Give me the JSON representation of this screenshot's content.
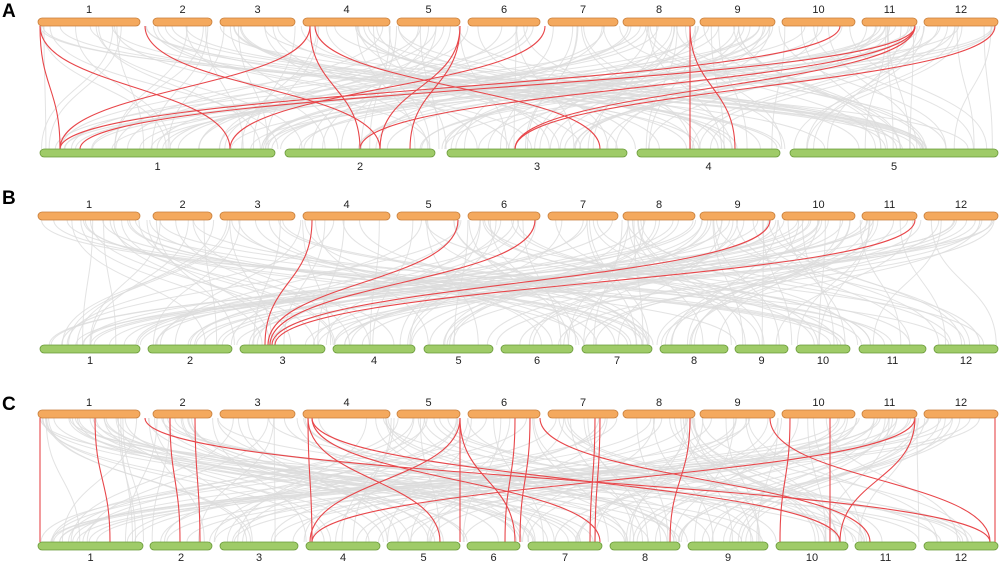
{
  "panels": [
    {
      "label": "A",
      "top": [
        "1",
        "2",
        "3",
        "4",
        "5",
        "6",
        "7",
        "8",
        "9",
        "10",
        "11",
        "12"
      ],
      "bottom": [
        "1",
        "2",
        "3",
        "4",
        "5"
      ]
    },
    {
      "label": "B",
      "top": [
        "1",
        "2",
        "3",
        "4",
        "5",
        "6",
        "7",
        "8",
        "9",
        "10",
        "11",
        "12"
      ],
      "bottom": [
        "1",
        "2",
        "3",
        "4",
        "5",
        "6",
        "7",
        "8",
        "9",
        "10",
        "11",
        "12"
      ]
    },
    {
      "label": "C",
      "top": [
        "1",
        "2",
        "3",
        "4",
        "5",
        "6",
        "7",
        "8",
        "9",
        "10",
        "11",
        "12"
      ],
      "bottom": [
        "1",
        "2",
        "3",
        "4",
        "5",
        "6",
        "7",
        "8",
        "9",
        "10",
        "11",
        "12"
      ]
    }
  ]
}
